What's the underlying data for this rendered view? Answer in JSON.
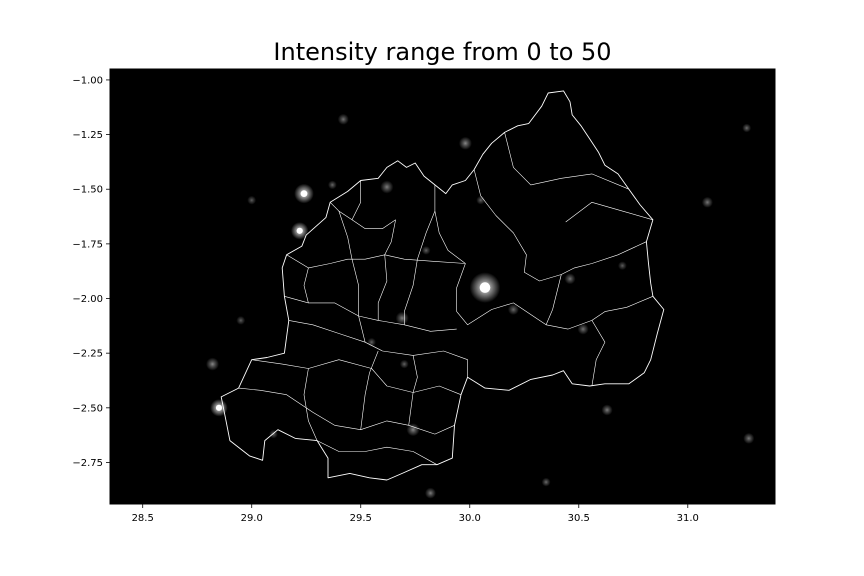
{
  "title": "Intensity range from 0 to 50",
  "colors": {
    "background": "#000000",
    "boundary": "#ffffff",
    "frame": "#000000"
  },
  "chart_data": {
    "type": "heatmap",
    "title": "Intensity range from 0 to 50",
    "colormap": "grayscale",
    "value_range": [
      0,
      50
    ],
    "xlim": [
      28.35,
      31.4
    ],
    "ylim": [
      -2.94,
      -0.95
    ],
    "x_ticks": [
      28.5,
      29.0,
      29.5,
      30.0,
      30.5,
      31.0
    ],
    "x_tick_labels": [
      "28.5",
      "29.0",
      "29.5",
      "30.0",
      "30.5",
      "31.0"
    ],
    "y_ticks": [
      -1.0,
      -1.25,
      -1.5,
      -1.75,
      -2.0,
      -2.25,
      -2.5,
      -2.75
    ],
    "y_tick_labels": [
      "−1.00",
      "−1.25",
      "−1.50",
      "−1.75",
      "−2.00",
      "−2.25",
      "−2.50",
      "−2.75"
    ],
    "grid": false,
    "hotspots": [
      {
        "x": 30.07,
        "y": -1.95,
        "value": 50,
        "r": 0.07
      },
      {
        "x": 29.24,
        "y": -1.52,
        "value": 48,
        "r": 0.045
      },
      {
        "x": 29.22,
        "y": -1.69,
        "value": 42,
        "r": 0.04
      },
      {
        "x": 28.85,
        "y": -2.5,
        "value": 40,
        "r": 0.04
      },
      {
        "x": 28.82,
        "y": -2.3,
        "value": 14,
        "r": 0.03
      },
      {
        "x": 29.62,
        "y": -1.49,
        "value": 12,
        "r": 0.03
      },
      {
        "x": 29.98,
        "y": -1.29,
        "value": 14,
        "r": 0.03
      },
      {
        "x": 29.42,
        "y": -1.18,
        "value": 10,
        "r": 0.025
      },
      {
        "x": 29.69,
        "y": -2.09,
        "value": 12,
        "r": 0.03
      },
      {
        "x": 29.74,
        "y": -2.6,
        "value": 14,
        "r": 0.03
      },
      {
        "x": 29.82,
        "y": -2.89,
        "value": 12,
        "r": 0.025
      },
      {
        "x": 30.52,
        "y": -2.14,
        "value": 10,
        "r": 0.025
      },
      {
        "x": 30.46,
        "y": -1.91,
        "value": 10,
        "r": 0.025
      },
      {
        "x": 30.63,
        "y": -2.51,
        "value": 12,
        "r": 0.025
      },
      {
        "x": 31.09,
        "y": -1.56,
        "value": 11,
        "r": 0.025
      },
      {
        "x": 31.28,
        "y": -2.64,
        "value": 11,
        "r": 0.025
      },
      {
        "x": 31.27,
        "y": -1.22,
        "value": 9,
        "r": 0.02
      },
      {
        "x": 30.35,
        "y": -2.84,
        "value": 9,
        "r": 0.02
      },
      {
        "x": 29.37,
        "y": -1.48,
        "value": 8,
        "r": 0.02
      },
      {
        "x": 29.55,
        "y": -2.2,
        "value": 7,
        "r": 0.02
      },
      {
        "x": 29.1,
        "y": -2.62,
        "value": 7,
        "r": 0.02
      },
      {
        "x": 29.8,
        "y": -1.78,
        "value": 7,
        "r": 0.02
      },
      {
        "x": 29.7,
        "y": -2.3,
        "value": 7,
        "r": 0.02
      },
      {
        "x": 30.2,
        "y": -2.05,
        "value": 9,
        "r": 0.025
      },
      {
        "x": 30.05,
        "y": -1.55,
        "value": 7,
        "r": 0.02
      },
      {
        "x": 30.7,
        "y": -1.85,
        "value": 6,
        "r": 0.02
      },
      {
        "x": 28.95,
        "y": -2.1,
        "value": 6,
        "r": 0.02
      },
      {
        "x": 29.0,
        "y": -1.55,
        "value": 6,
        "r": 0.02
      }
    ],
    "outline": [
      [
        29.58,
        -1.45
      ],
      [
        29.62,
        -1.4
      ],
      [
        29.67,
        -1.37
      ],
      [
        29.71,
        -1.4
      ],
      [
        29.75,
        -1.38
      ],
      [
        29.79,
        -1.44
      ],
      [
        29.84,
        -1.48
      ],
      [
        29.89,
        -1.52
      ],
      [
        29.92,
        -1.48
      ],
      [
        29.98,
        -1.46
      ],
      [
        30.02,
        -1.41
      ],
      [
        30.06,
        -1.34
      ],
      [
        30.1,
        -1.29
      ],
      [
        30.16,
        -1.24
      ],
      [
        30.22,
        -1.21
      ],
      [
        30.27,
        -1.2
      ],
      [
        30.33,
        -1.12
      ],
      [
        30.36,
        -1.06
      ],
      [
        30.43,
        -1.05
      ],
      [
        30.46,
        -1.1
      ],
      [
        30.47,
        -1.16
      ],
      [
        30.51,
        -1.21
      ],
      [
        30.55,
        -1.27
      ],
      [
        30.59,
        -1.33
      ],
      [
        30.62,
        -1.39
      ],
      [
        30.68,
        -1.43
      ],
      [
        30.73,
        -1.5
      ],
      [
        30.78,
        -1.57
      ],
      [
        30.84,
        -1.64
      ],
      [
        30.81,
        -1.74
      ],
      [
        30.82,
        -1.84
      ],
      [
        30.83,
        -1.93
      ],
      [
        30.84,
        -1.99
      ],
      [
        30.89,
        -2.05
      ],
      [
        30.86,
        -2.16
      ],
      [
        30.83,
        -2.28
      ],
      [
        30.8,
        -2.34
      ],
      [
        30.73,
        -2.39
      ],
      [
        30.62,
        -2.39
      ],
      [
        30.55,
        -2.4
      ],
      [
        30.47,
        -2.39
      ],
      [
        30.43,
        -2.33
      ],
      [
        30.38,
        -2.35
      ],
      [
        30.28,
        -2.37
      ],
      [
        30.18,
        -2.42
      ],
      [
        30.07,
        -2.41
      ],
      [
        29.99,
        -2.36
      ],
      [
        29.96,
        -2.44
      ],
      [
        29.93,
        -2.58
      ],
      [
        29.92,
        -2.73
      ],
      [
        29.85,
        -2.76
      ],
      [
        29.78,
        -2.76
      ],
      [
        29.69,
        -2.8
      ],
      [
        29.62,
        -2.83
      ],
      [
        29.54,
        -2.82
      ],
      [
        29.45,
        -2.8
      ],
      [
        29.35,
        -2.82
      ],
      [
        29.35,
        -2.73
      ],
      [
        29.3,
        -2.65
      ],
      [
        29.2,
        -2.64
      ],
      [
        29.12,
        -2.6
      ],
      [
        29.06,
        -2.65
      ],
      [
        29.05,
        -2.74
      ],
      [
        28.99,
        -2.72
      ],
      [
        28.9,
        -2.65
      ],
      [
        28.88,
        -2.55
      ],
      [
        28.86,
        -2.45
      ],
      [
        28.94,
        -2.41
      ],
      [
        29.0,
        -2.28
      ],
      [
        29.07,
        -2.27
      ],
      [
        29.15,
        -2.25
      ],
      [
        29.17,
        -2.1
      ],
      [
        29.15,
        -1.99
      ],
      [
        29.14,
        -1.86
      ],
      [
        29.16,
        -1.8
      ],
      [
        29.23,
        -1.76
      ],
      [
        29.25,
        -1.71
      ],
      [
        29.34,
        -1.63
      ],
      [
        29.36,
        -1.56
      ],
      [
        29.44,
        -1.51
      ],
      [
        29.5,
        -1.46
      ],
      [
        29.58,
        -1.45
      ]
    ],
    "internal_boundaries": [
      [
        [
          29.36,
          -1.56
        ],
        [
          29.4,
          -1.6
        ],
        [
          29.46,
          -1.64
        ],
        [
          29.52,
          -1.68
        ],
        [
          29.6,
          -1.68
        ],
        [
          29.66,
          -1.64
        ]
      ],
      [
        [
          29.84,
          -1.48
        ],
        [
          29.84,
          -1.6
        ],
        [
          29.86,
          -1.7
        ],
        [
          29.9,
          -1.78
        ],
        [
          29.98,
          -1.84
        ]
      ],
      [
        [
          30.02,
          -1.41
        ],
        [
          30.05,
          -1.53
        ],
        [
          30.12,
          -1.62
        ],
        [
          30.2,
          -1.7
        ],
        [
          30.26,
          -1.8
        ],
        [
          30.25,
          -1.88
        ],
        [
          30.32,
          -1.92
        ],
        [
          30.42,
          -1.89
        ]
      ],
      [
        [
          30.16,
          -1.24
        ],
        [
          30.2,
          -1.4
        ],
        [
          30.28,
          -1.48
        ],
        [
          30.42,
          -1.45
        ],
        [
          30.56,
          -1.43
        ],
        [
          30.73,
          -1.5
        ]
      ],
      [
        [
          30.42,
          -1.89
        ],
        [
          30.48,
          -1.86
        ],
        [
          30.56,
          -1.84
        ],
        [
          30.68,
          -1.8
        ],
        [
          30.81,
          -1.74
        ]
      ],
      [
        [
          30.42,
          -1.89
        ],
        [
          30.38,
          -2.05
        ],
        [
          30.35,
          -2.12
        ],
        [
          30.45,
          -2.14
        ],
        [
          30.56,
          -2.1
        ],
        [
          30.62,
          -2.06
        ],
        [
          30.72,
          -2.04
        ],
        [
          30.84,
          -1.99
        ]
      ],
      [
        [
          30.44,
          -1.65
        ],
        [
          30.56,
          -1.56
        ],
        [
          30.7,
          -1.6
        ],
        [
          30.84,
          -1.64
        ]
      ],
      [
        [
          29.98,
          -1.84
        ],
        [
          29.94,
          -1.95
        ],
        [
          29.94,
          -2.06
        ],
        [
          29.99,
          -2.12
        ],
        [
          30.1,
          -2.05
        ],
        [
          30.2,
          -2.02
        ],
        [
          30.32,
          -2.1
        ],
        [
          30.35,
          -2.12
        ]
      ],
      [
        [
          29.16,
          -1.8
        ],
        [
          29.26,
          -1.86
        ],
        [
          29.36,
          -1.84
        ],
        [
          29.44,
          -1.82
        ],
        [
          29.52,
          -1.82
        ],
        [
          29.61,
          -1.8
        ],
        [
          29.7,
          -1.82
        ],
        [
          29.84,
          -1.83
        ],
        [
          29.98,
          -1.84
        ]
      ],
      [
        [
          29.15,
          -1.99
        ],
        [
          29.26,
          -2.02
        ],
        [
          29.38,
          -2.02
        ],
        [
          29.49,
          -2.08
        ],
        [
          29.58,
          -2.1
        ],
        [
          29.7,
          -2.12
        ],
        [
          29.82,
          -2.15
        ],
        [
          29.94,
          -2.14
        ]
      ],
      [
        [
          29.17,
          -2.1
        ],
        [
          29.28,
          -2.12
        ],
        [
          29.4,
          -2.16
        ],
        [
          29.52,
          -2.2
        ],
        [
          29.6,
          -2.24
        ],
        [
          29.74,
          -2.26
        ],
        [
          29.88,
          -2.24
        ],
        [
          29.99,
          -2.28
        ],
        [
          29.99,
          -2.36
        ]
      ],
      [
        [
          29.0,
          -2.28
        ],
        [
          29.14,
          -2.3
        ],
        [
          29.26,
          -2.32
        ],
        [
          29.4,
          -2.28
        ],
        [
          29.55,
          -2.32
        ],
        [
          29.62,
          -2.4
        ],
        [
          29.74,
          -2.43
        ],
        [
          29.86,
          -2.4
        ],
        [
          29.96,
          -2.44
        ]
      ],
      [
        [
          28.94,
          -2.41
        ],
        [
          29.04,
          -2.42
        ],
        [
          29.16,
          -2.44
        ],
        [
          29.28,
          -2.52
        ],
        [
          29.38,
          -2.58
        ],
        [
          29.5,
          -2.6
        ],
        [
          29.62,
          -2.56
        ],
        [
          29.72,
          -2.58
        ],
        [
          29.84,
          -2.62
        ],
        [
          29.93,
          -2.58
        ]
      ],
      [
        [
          29.3,
          -2.65
        ],
        [
          29.4,
          -2.7
        ],
        [
          29.52,
          -2.7
        ],
        [
          29.62,
          -2.68
        ],
        [
          29.74,
          -2.7
        ],
        [
          29.85,
          -2.76
        ]
      ],
      [
        [
          29.4,
          -1.6
        ],
        [
          29.44,
          -1.72
        ],
        [
          29.46,
          -1.82
        ],
        [
          29.49,
          -1.94
        ],
        [
          29.49,
          -2.08
        ],
        [
          29.52,
          -2.2
        ]
      ],
      [
        [
          29.66,
          -1.64
        ],
        [
          29.64,
          -1.74
        ],
        [
          29.61,
          -1.8
        ],
        [
          29.62,
          -1.92
        ],
        [
          29.58,
          -2.02
        ],
        [
          29.58,
          -2.1
        ]
      ],
      [
        [
          29.84,
          -1.6
        ],
        [
          29.8,
          -1.7
        ],
        [
          29.76,
          -1.82
        ],
        [
          29.74,
          -1.94
        ],
        [
          29.7,
          -2.06
        ],
        [
          29.7,
          -2.12
        ]
      ],
      [
        [
          29.58,
          -2.24
        ],
        [
          29.54,
          -2.34
        ],
        [
          29.52,
          -2.44
        ],
        [
          29.5,
          -2.6
        ]
      ],
      [
        [
          29.74,
          -2.26
        ],
        [
          29.76,
          -2.36
        ],
        [
          29.74,
          -2.43
        ],
        [
          29.72,
          -2.58
        ]
      ],
      [
        [
          29.26,
          -2.32
        ],
        [
          29.24,
          -2.44
        ],
        [
          29.26,
          -2.56
        ],
        [
          29.3,
          -2.65
        ]
      ],
      [
        [
          29.26,
          -1.86
        ],
        [
          29.24,
          -1.94
        ],
        [
          29.26,
          -2.02
        ]
      ],
      [
        [
          29.46,
          -1.64
        ],
        [
          29.5,
          -1.56
        ],
        [
          29.5,
          -1.46
        ]
      ],
      [
        [
          30.56,
          -2.4
        ],
        [
          30.58,
          -2.28
        ],
        [
          30.62,
          -2.2
        ],
        [
          30.56,
          -2.1
        ]
      ]
    ]
  }
}
